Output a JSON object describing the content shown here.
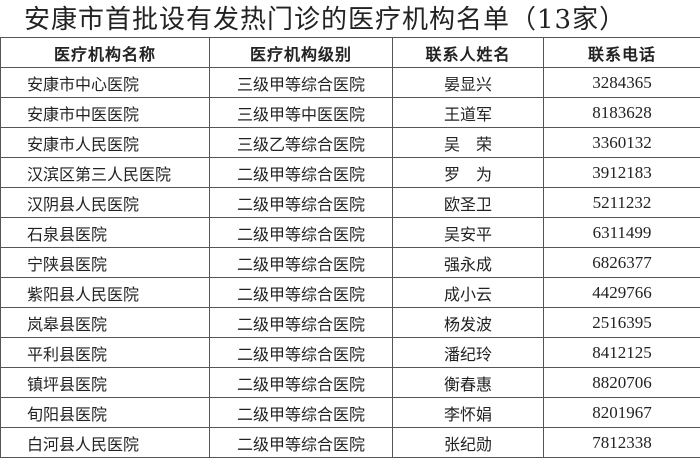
{
  "title": "安康市首批设有发热门诊的医疗机构名单（13家）",
  "headers": [
    "医疗机构名称",
    "医疗机构级别",
    "联系人姓名",
    "联系电话"
  ],
  "rows": [
    {
      "name": "安康市中心医院",
      "level": "三级甲等综合医院",
      "contact": "晏显兴",
      "phone": "3284365"
    },
    {
      "name": "安康市中医医院",
      "level": "三级甲等中医医院",
      "contact": "王道军",
      "phone": "8183628"
    },
    {
      "name": "安康市人民医院",
      "level": "三级乙等综合医院",
      "contact": "吴　荣",
      "phone": "3360132"
    },
    {
      "name": "汉滨区第三人民医院",
      "level": "二级甲等综合医院",
      "contact": "罗　为",
      "phone": "3912183"
    },
    {
      "name": "汉阴县人民医院",
      "level": "二级甲等综合医院",
      "contact": "欧圣卫",
      "phone": "5211232"
    },
    {
      "name": "石泉县医院",
      "level": "二级甲等综合医院",
      "contact": "吴安平",
      "phone": "6311499"
    },
    {
      "name": "宁陕县医院",
      "level": "二级甲等综合医院",
      "contact": "强永成",
      "phone": "6826377"
    },
    {
      "name": "紫阳县人民医院",
      "level": "二级甲等综合医院",
      "contact": "成小云",
      "phone": "4429766"
    },
    {
      "name": "岚皋县医院",
      "level": "二级甲等综合医院",
      "contact": "杨发波",
      "phone": "2516395"
    },
    {
      "name": "平利县医院",
      "level": "二级甲等综合医院",
      "contact": "潘纪玲",
      "phone": "8412125"
    },
    {
      "name": "镇坪县医院",
      "level": "二级甲等综合医院",
      "contact": "衡春惠",
      "phone": "8820706"
    },
    {
      "name": "旬阳县医院",
      "level": "二级甲等综合医院",
      "contact": "李怀娟",
      "phone": "8201967"
    },
    {
      "name": "白河县人民医院",
      "level": "二级甲等综合医院",
      "contact": "张纪勋",
      "phone": "7812338"
    }
  ]
}
